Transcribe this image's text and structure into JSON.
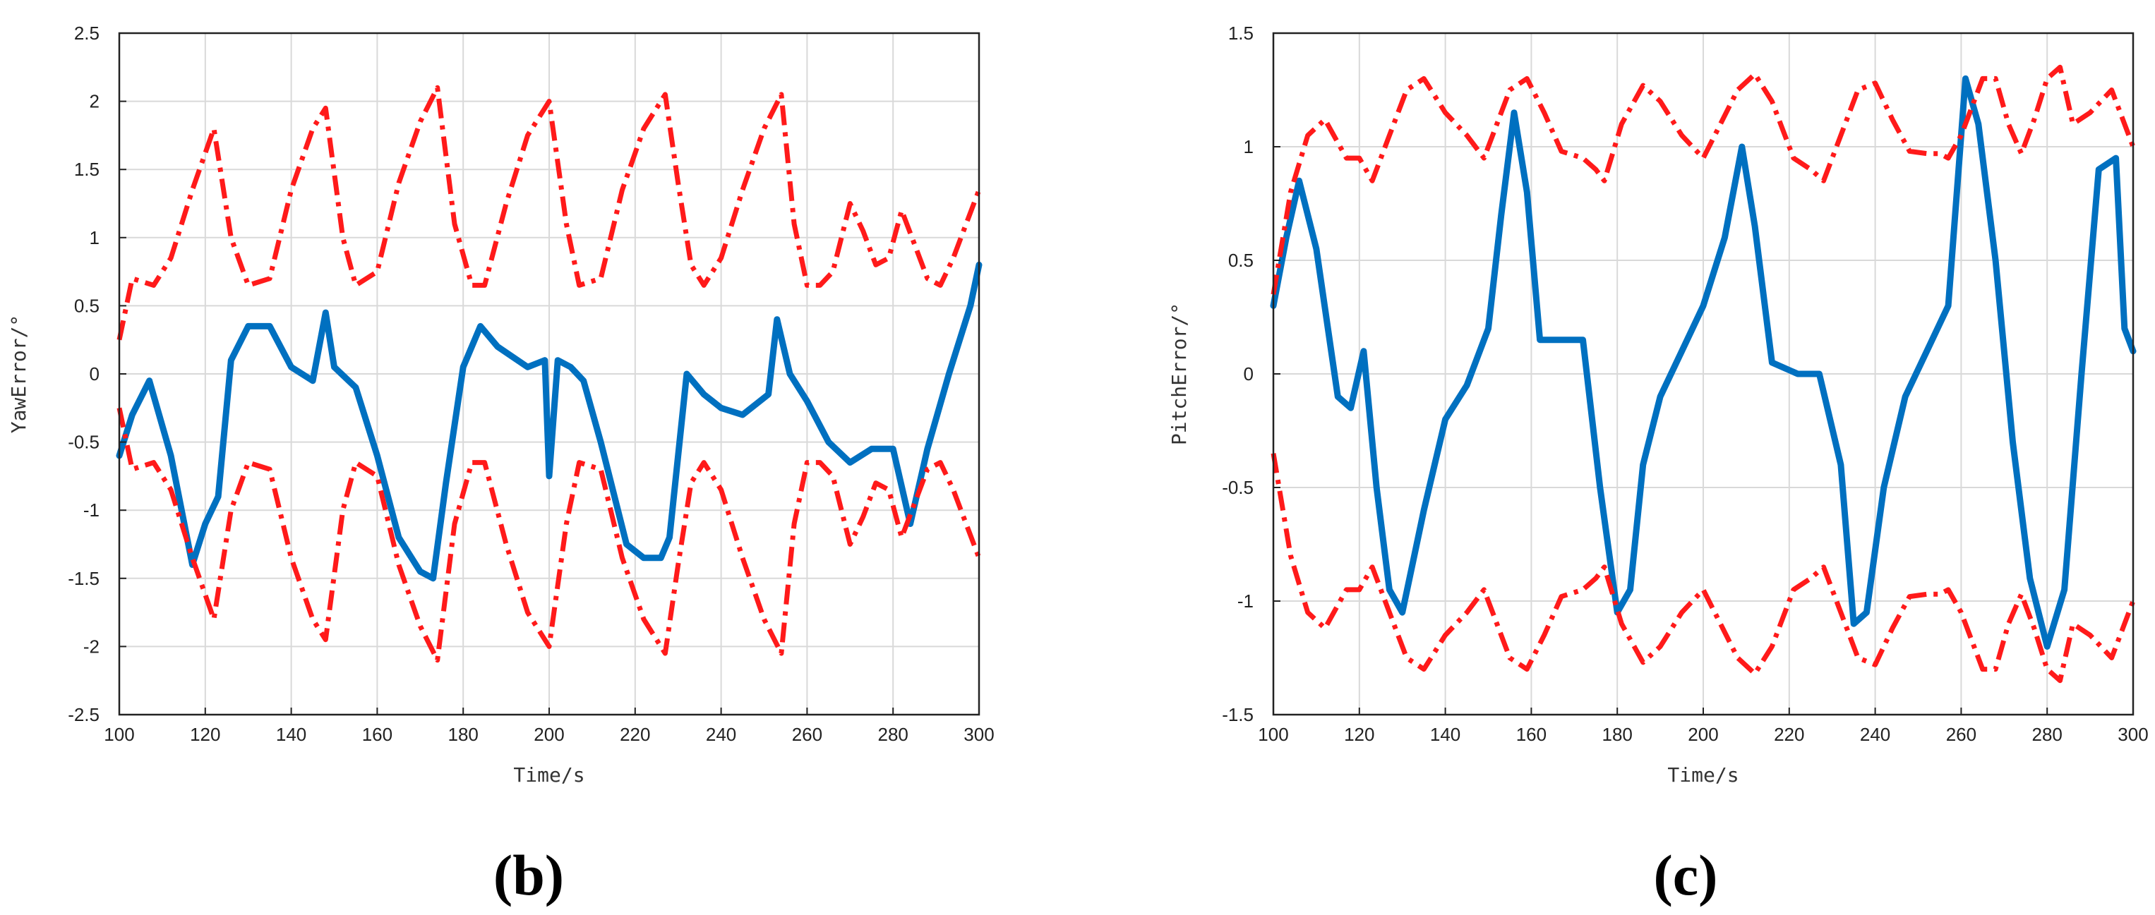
{
  "figure": {
    "panels": [
      {
        "label": "(b)"
      },
      {
        "label": "(c)"
      }
    ]
  },
  "chart_data": [
    {
      "type": "line",
      "title": "",
      "xlabel": "Time/s",
      "ylabel": "YawError/°",
      "xlim": [
        100,
        300
      ],
      "ylim": [
        -2.5,
        2.5
      ],
      "xticks": [
        100,
        120,
        140,
        160,
        180,
        200,
        220,
        240,
        260,
        280,
        300
      ],
      "yticks": [
        -2.5,
        -2,
        -1.5,
        -1,
        -0.5,
        0,
        0.5,
        1,
        1.5,
        2,
        2.5
      ],
      "ytick_labels": [
        "-2.5",
        "-2",
        "-1.5",
        "-1",
        "-0.5",
        "0",
        "0.5",
        "1",
        "1.5",
        "2",
        "2.5"
      ],
      "grid": true,
      "series": [
        {
          "color": "#0070c0",
          "style": "solid",
          "x": [
            100,
            103,
            107,
            112,
            117,
            120,
            123,
            126,
            130,
            135,
            140,
            145,
            148,
            150,
            155,
            160,
            165,
            170,
            173,
            176,
            180,
            184,
            188,
            195,
            199,
            200,
            202,
            205,
            208,
            212,
            218,
            222,
            226,
            228,
            232,
            236,
            240,
            245,
            251,
            253,
            256,
            260,
            265,
            270,
            275,
            280,
            284,
            288,
            293,
            298,
            300
          ],
          "y": [
            -0.6,
            -0.3,
            -0.05,
            -0.6,
            -1.4,
            -1.1,
            -0.9,
            0.1,
            0.35,
            0.35,
            0.05,
            -0.05,
            0.45,
            0.05,
            -0.1,
            -0.6,
            -1.2,
            -1.45,
            -1.5,
            -0.8,
            0.05,
            0.35,
            0.2,
            0.05,
            0.1,
            -0.75,
            0.1,
            0.05,
            -0.05,
            -0.5,
            -1.25,
            -1.35,
            -1.35,
            -1.2,
            0.0,
            -0.15,
            -0.25,
            -0.3,
            -0.15,
            0.4,
            0.0,
            -0.2,
            -0.5,
            -0.65,
            -0.55,
            -0.55,
            -1.1,
            -0.55,
            0.0,
            0.5,
            0.8
          ]
        },
        {
          "color": "#ff1a1a",
          "style": "dashdot",
          "x": [
            100,
            103,
            108,
            112,
            117,
            122,
            126,
            130,
            135,
            140,
            145,
            148,
            152,
            155,
            160,
            165,
            170,
            174,
            178,
            182,
            185,
            190,
            195,
            200,
            204,
            207,
            212,
            217,
            222,
            227,
            230,
            233,
            236,
            240,
            245,
            250,
            254,
            257,
            260,
            263,
            266,
            270,
            273,
            276,
            279,
            282,
            285,
            288,
            291,
            294,
            297,
            300
          ],
          "y": [
            0.25,
            0.7,
            0.65,
            0.85,
            1.35,
            1.8,
            1.0,
            0.65,
            0.7,
            1.35,
            1.8,
            1.95,
            1.0,
            0.65,
            0.75,
            1.4,
            1.85,
            2.1,
            1.1,
            0.65,
            0.65,
            1.25,
            1.75,
            2.0,
            1.1,
            0.65,
            0.7,
            1.35,
            1.8,
            2.05,
            1.4,
            0.8,
            0.65,
            0.85,
            1.35,
            1.8,
            2.05,
            1.1,
            0.65,
            0.65,
            0.75,
            1.25,
            1.05,
            0.8,
            0.85,
            1.2,
            0.95,
            0.7,
            0.65,
            0.85,
            1.1,
            1.35
          ]
        },
        {
          "color": "#ff1a1a",
          "style": "dashdot",
          "x": [
            100,
            103,
            108,
            112,
            117,
            122,
            126,
            130,
            135,
            140,
            145,
            148,
            152,
            155,
            160,
            165,
            170,
            174,
            178,
            182,
            185,
            190,
            195,
            200,
            204,
            207,
            212,
            217,
            222,
            227,
            230,
            233,
            236,
            240,
            245,
            250,
            254,
            257,
            260,
            263,
            266,
            270,
            273,
            276,
            279,
            282,
            285,
            288,
            291,
            294,
            297,
            300
          ],
          "y": [
            -0.25,
            -0.7,
            -0.65,
            -0.85,
            -1.35,
            -1.8,
            -1.0,
            -0.65,
            -0.7,
            -1.35,
            -1.8,
            -1.95,
            -1.0,
            -0.65,
            -0.75,
            -1.4,
            -1.85,
            -2.1,
            -1.1,
            -0.65,
            -0.65,
            -1.25,
            -1.75,
            -2.0,
            -1.1,
            -0.65,
            -0.7,
            -1.35,
            -1.8,
            -2.05,
            -1.4,
            -0.8,
            -0.65,
            -0.85,
            -1.35,
            -1.8,
            -2.05,
            -1.1,
            -0.65,
            -0.65,
            -0.75,
            -1.25,
            -1.05,
            -0.8,
            -0.85,
            -1.2,
            -0.95,
            -0.7,
            -0.65,
            -0.85,
            -1.1,
            -1.35
          ]
        }
      ]
    },
    {
      "type": "line",
      "title": "",
      "xlabel": "Time/s",
      "ylabel": "PitchError/°",
      "xlim": [
        100,
        300
      ],
      "ylim": [
        -1.5,
        1.5
      ],
      "xticks": [
        100,
        120,
        140,
        160,
        180,
        200,
        220,
        240,
        260,
        280,
        300
      ],
      "yticks": [
        -1.5,
        -1,
        -0.5,
        0,
        0.5,
        1,
        1.5
      ],
      "ytick_labels": [
        "-1.5",
        "-1",
        "-0.5",
        "0",
        "0.5",
        "1",
        "1.5"
      ],
      "grid": true,
      "series": [
        {
          "color": "#0070c0",
          "style": "solid",
          "x": [
            100,
            103,
            106,
            110,
            115,
            118,
            121,
            124,
            127,
            130,
            135,
            140,
            145,
            150,
            153,
            156,
            159,
            162,
            167,
            172,
            176,
            180,
            183,
            186,
            190,
            195,
            200,
            205,
            209,
            212,
            216,
            222,
            227,
            232,
            235,
            238,
            242,
            247,
            252,
            257,
            261,
            264,
            268,
            272,
            276,
            280,
            284,
            288,
            292,
            296,
            298,
            300
          ],
          "y": [
            0.3,
            0.6,
            0.85,
            0.55,
            -0.1,
            -0.15,
            0.1,
            -0.5,
            -0.95,
            -1.05,
            -0.6,
            -0.2,
            -0.05,
            0.2,
            0.7,
            1.15,
            0.8,
            0.15,
            0.15,
            0.15,
            -0.5,
            -1.05,
            -0.95,
            -0.4,
            -0.1,
            0.1,
            0.3,
            0.6,
            1.0,
            0.65,
            0.05,
            0.0,
            0.0,
            -0.4,
            -1.1,
            -1.05,
            -0.5,
            -0.1,
            0.1,
            0.3,
            1.3,
            1.1,
            0.5,
            -0.3,
            -0.9,
            -1.2,
            -0.95,
            0.0,
            0.9,
            0.95,
            0.2,
            0.1
          ]
        },
        {
          "color": "#ff1a1a",
          "style": "dashdot",
          "x": [
            100,
            104,
            108,
            112,
            117,
            120,
            123,
            127,
            131,
            135,
            140,
            145,
            149,
            152,
            155,
            159,
            163,
            167,
            172,
            175,
            177,
            181,
            186,
            190,
            195,
            200,
            204,
            208,
            212,
            216,
            221,
            225,
            228,
            232,
            236,
            240,
            244,
            248,
            252,
            255,
            257,
            260,
            265,
            268,
            271,
            274,
            277,
            280,
            283,
            286,
            290,
            295,
            300
          ],
          "y": [
            0.35,
            0.8,
            1.05,
            1.12,
            0.95,
            0.95,
            0.85,
            1.05,
            1.25,
            1.3,
            1.15,
            1.05,
            0.95,
            1.1,
            1.25,
            1.3,
            1.15,
            0.98,
            0.95,
            0.9,
            0.85,
            1.1,
            1.27,
            1.2,
            1.05,
            0.95,
            1.1,
            1.25,
            1.32,
            1.2,
            0.95,
            0.9,
            0.85,
            1.05,
            1.25,
            1.28,
            1.12,
            0.98,
            0.97,
            0.97,
            0.95,
            1.05,
            1.3,
            1.3,
            1.1,
            0.97,
            1.12,
            1.3,
            1.35,
            1.1,
            1.15,
            1.25,
            1.0
          ]
        },
        {
          "color": "#ff1a1a",
          "style": "dashdot",
          "x": [
            100,
            104,
            108,
            112,
            117,
            120,
            123,
            127,
            131,
            135,
            140,
            145,
            149,
            152,
            155,
            159,
            163,
            167,
            172,
            175,
            177,
            181,
            186,
            190,
            195,
            200,
            204,
            208,
            212,
            216,
            221,
            225,
            228,
            232,
            236,
            240,
            244,
            248,
            252,
            255,
            257,
            260,
            265,
            268,
            271,
            274,
            277,
            280,
            283,
            286,
            290,
            295,
            300
          ],
          "y": [
            -0.35,
            -0.8,
            -1.05,
            -1.12,
            -0.95,
            -0.95,
            -0.85,
            -1.05,
            -1.25,
            -1.3,
            -1.15,
            -1.05,
            -0.95,
            -1.1,
            -1.25,
            -1.3,
            -1.15,
            -0.98,
            -0.95,
            -0.9,
            -0.85,
            -1.1,
            -1.27,
            -1.2,
            -1.05,
            -0.95,
            -1.1,
            -1.25,
            -1.32,
            -1.2,
            -0.95,
            -0.9,
            -0.85,
            -1.05,
            -1.25,
            -1.28,
            -1.12,
            -0.98,
            -0.97,
            -0.97,
            -0.95,
            -1.05,
            -1.3,
            -1.3,
            -1.1,
            -0.97,
            -1.12,
            -1.3,
            -1.35,
            -1.1,
            -1.15,
            -1.25,
            -1.0
          ]
        }
      ]
    }
  ]
}
